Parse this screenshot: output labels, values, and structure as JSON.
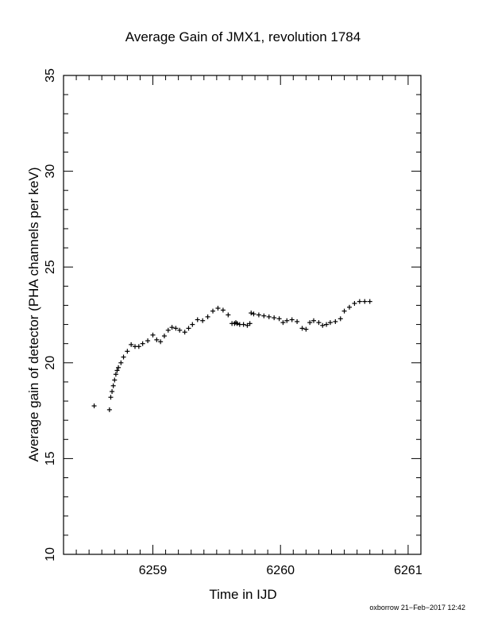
{
  "chart_data": {
    "type": "scatter",
    "title": "Average Gain of JMX1, revolution 1784",
    "xlabel": "Time in IJD",
    "ylabel": "Average gain of detector (PHA channels per keV)",
    "xlim": [
      6258.3,
      6261.1
    ],
    "ylim": [
      10,
      35
    ],
    "xticks": [
      6259,
      6260,
      6261
    ],
    "yticks": [
      10,
      15,
      20,
      25,
      30,
      35
    ],
    "x_minor_step": 0.1,
    "y_minor_step": 1,
    "marker": "plus",
    "marker_color": "#000000",
    "grid": false,
    "series": [
      {
        "x": [
          6258.54,
          6258.66,
          6258.67,
          6258.68,
          6258.69,
          6258.7,
          6258.71,
          6258.72,
          6258.73,
          6258.75,
          6258.77,
          6258.8,
          6258.83,
          6258.86,
          6258.89,
          6258.92,
          6258.96,
          6259.0,
          6259.03,
          6259.06,
          6259.09,
          6259.12,
          6259.15,
          6259.18,
          6259.21,
          6259.25,
          6259.28,
          6259.31,
          6259.35,
          6259.39,
          6259.43,
          6259.47,
          6259.51,
          6259.55,
          6259.59,
          6259.62,
          6259.64,
          6259.65,
          6259.66,
          6259.68,
          6259.71,
          6259.74,
          6259.76,
          6259.77,
          6259.79,
          6259.83,
          6259.87,
          6259.91,
          6259.95,
          6259.99,
          6260.02,
          6260.05,
          6260.09,
          6260.13,
          6260.17,
          6260.2,
          6260.23,
          6260.26,
          6260.3,
          6260.33,
          6260.36,
          6260.39,
          6260.43,
          6260.47,
          6260.5,
          6260.54,
          6260.58,
          6260.62,
          6260.66,
          6260.7
        ],
        "y": [
          17.75,
          17.55,
          18.2,
          18.5,
          18.8,
          19.1,
          19.4,
          19.6,
          19.75,
          20.0,
          20.3,
          20.6,
          20.95,
          20.85,
          20.85,
          21.0,
          21.15,
          21.45,
          21.2,
          21.1,
          21.4,
          21.7,
          21.85,
          21.8,
          21.7,
          21.6,
          21.8,
          22.0,
          22.25,
          22.2,
          22.4,
          22.7,
          22.85,
          22.75,
          22.5,
          22.05,
          22.05,
          22.1,
          22.05,
          22.0,
          22.0,
          21.95,
          22.05,
          22.6,
          22.55,
          22.5,
          22.45,
          22.4,
          22.35,
          22.3,
          22.1,
          22.2,
          22.25,
          22.15,
          21.8,
          21.75,
          22.1,
          22.2,
          22.1,
          21.95,
          22.0,
          22.1,
          22.15,
          22.3,
          22.7,
          22.9,
          23.1,
          23.2,
          23.2,
          23.2
        ]
      }
    ]
  },
  "footer": "oxborrow 21−Feb−2017 12:42"
}
